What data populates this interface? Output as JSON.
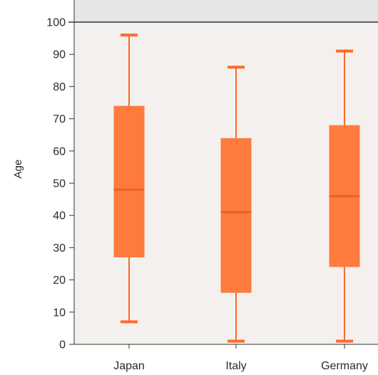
{
  "chart_data": {
    "type": "box",
    "title": "",
    "xlabel": "",
    "ylabel": "Age",
    "ylim": [
      0,
      100
    ],
    "yticks": [
      0,
      10,
      20,
      30,
      40,
      50,
      60,
      70,
      80,
      90,
      100
    ],
    "grid": false,
    "categories": [
      "Japan",
      "Italy",
      "Germany"
    ],
    "boxes": [
      {
        "category": "Japan",
        "min": 7,
        "q1": 27,
        "median": 48,
        "q3": 74,
        "max": 96
      },
      {
        "category": "Italy",
        "min": 1,
        "q1": 16,
        "median": 41,
        "q3": 64,
        "max": 86
      },
      {
        "category": "Germany",
        "min": 1,
        "q1": 24,
        "median": 46,
        "q3": 68,
        "max": 91
      }
    ],
    "colors": {
      "box_fill": "#ff7a3d",
      "box_stroke": "#ff6a2a",
      "median": "#e8602b",
      "plot_background": "#f3f0ee",
      "top_band": "#e6e6e6",
      "axis": "#333333"
    }
  }
}
